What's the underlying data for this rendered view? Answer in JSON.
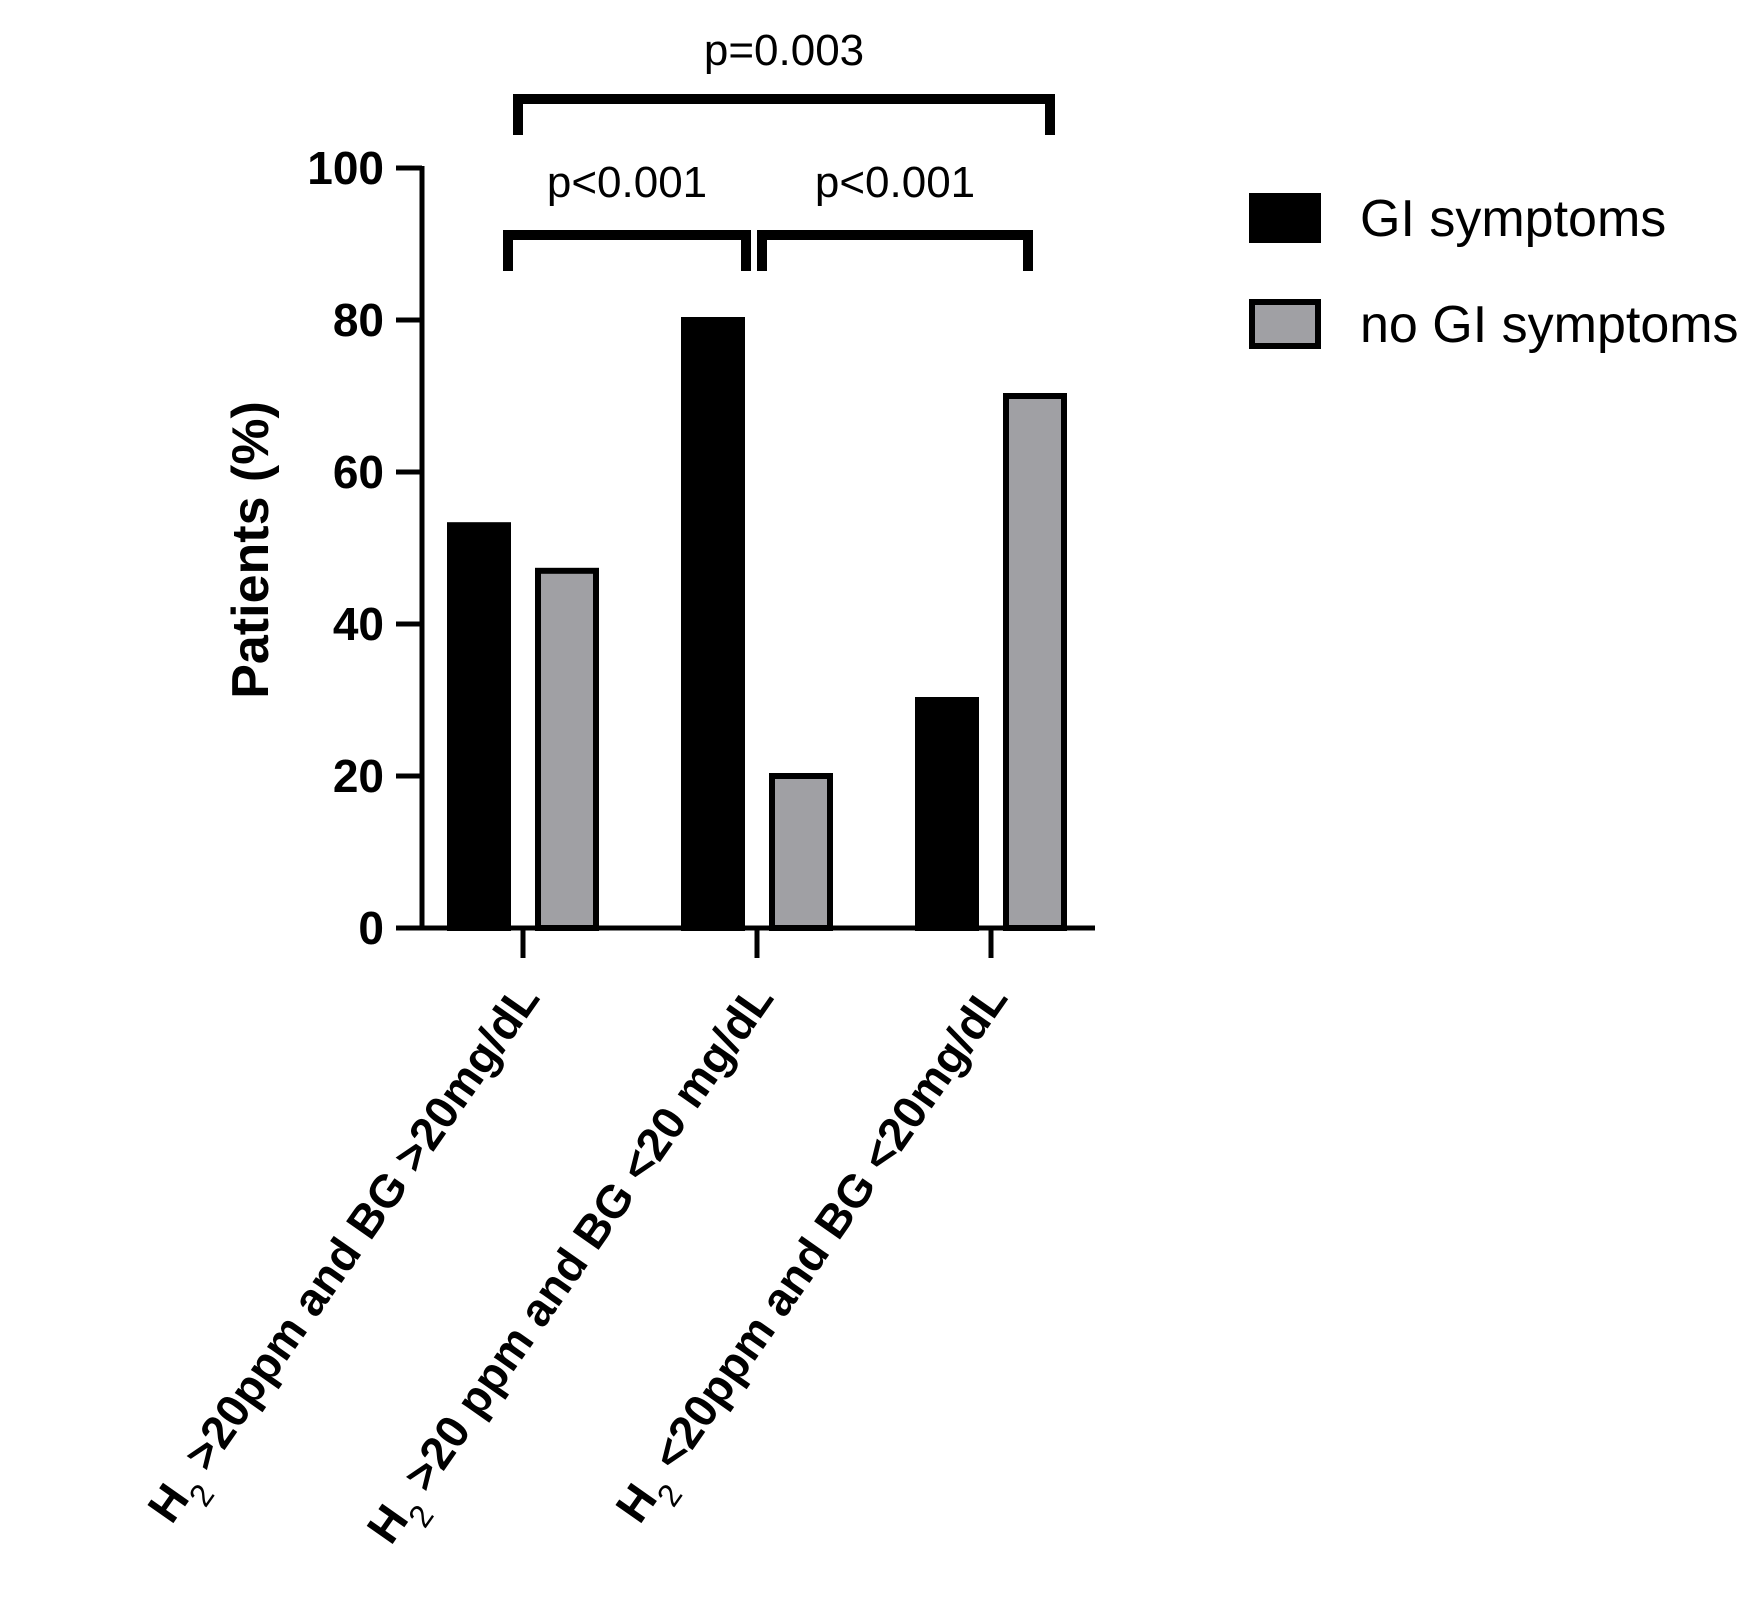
{
  "chart_data": {
    "type": "bar",
    "ylabel": "Patients (%)",
    "ylim": [
      0,
      100
    ],
    "yticks": [
      0,
      20,
      40,
      60,
      80,
      100
    ],
    "categories": [
      {
        "main": "H",
        "sub": "2",
        "rest": " >20ppm and BG >20mg/dL"
      },
      {
        "main": "H",
        "sub": "2",
        "rest": " >20 ppm and BG <20 mg/dL"
      },
      {
        "main": "H",
        "sub": "2",
        "rest": " <20ppm and BG <20mg/dL"
      }
    ],
    "series": [
      {
        "name": "GI symptoms",
        "color": "#000000",
        "values": [
          53,
          80,
          30
        ]
      },
      {
        "name": "no GI symptoms",
        "color": "#a0a0a4",
        "values": [
          47,
          20,
          70
        ]
      }
    ],
    "significance": [
      {
        "from": 0,
        "to": 2,
        "label": "p=0.003"
      },
      {
        "from": 0,
        "to": 1,
        "label": "p<0.001"
      },
      {
        "from": 1,
        "to": 2,
        "label": "p<0.001"
      }
    ],
    "legend_position": "right",
    "grid": false
  }
}
